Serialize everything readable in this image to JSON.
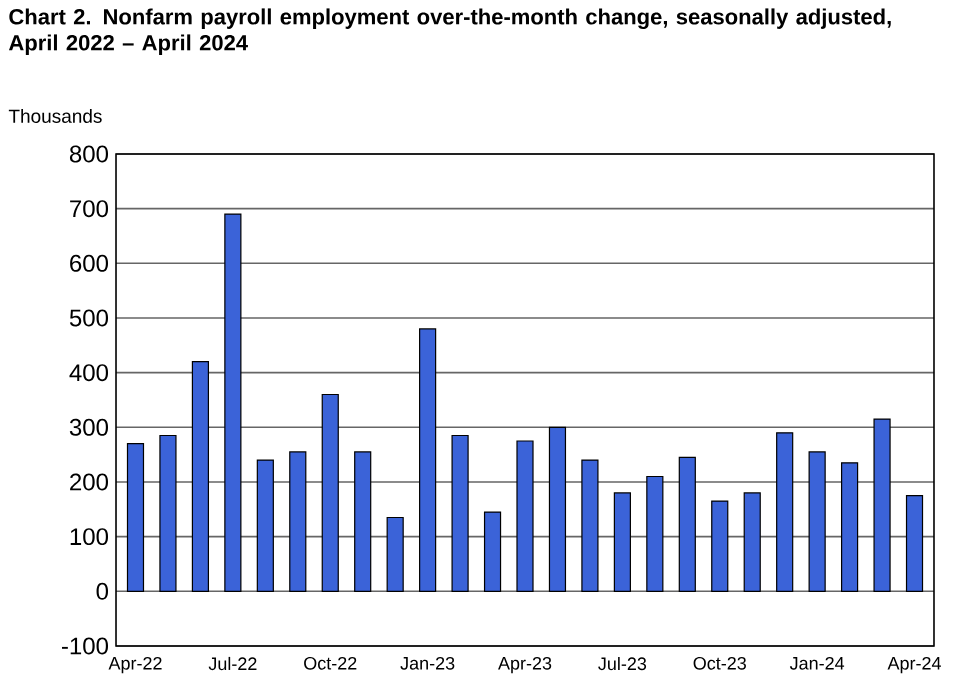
{
  "chart_data": {
    "type": "bar",
    "title": "Chart 2. Nonfarm payroll employment over-the-month change, seasonally adjusted, April 2022 – April 2024",
    "ylabel": "Thousands",
    "categories": [
      "Apr-22",
      null,
      null,
      "Jul-22",
      null,
      null,
      "Oct-22",
      null,
      null,
      "Jan-23",
      null,
      null,
      "Apr-23",
      null,
      null,
      "Jul-23",
      null,
      null,
      "Oct-23",
      null,
      null,
      "Jan-24",
      null,
      null,
      "Apr-24"
    ],
    "values": [
      270,
      285,
      420,
      690,
      240,
      255,
      360,
      255,
      135,
      480,
      285,
      145,
      275,
      300,
      240,
      180,
      210,
      245,
      165,
      180,
      290,
      255,
      235,
      315,
      175
    ],
    "color": "#3b63d8",
    "ylim": [
      -100,
      800
    ],
    "yticks": [
      -100,
      0,
      100,
      200,
      300,
      400,
      500,
      600,
      700,
      800
    ],
    "grid": "y"
  }
}
